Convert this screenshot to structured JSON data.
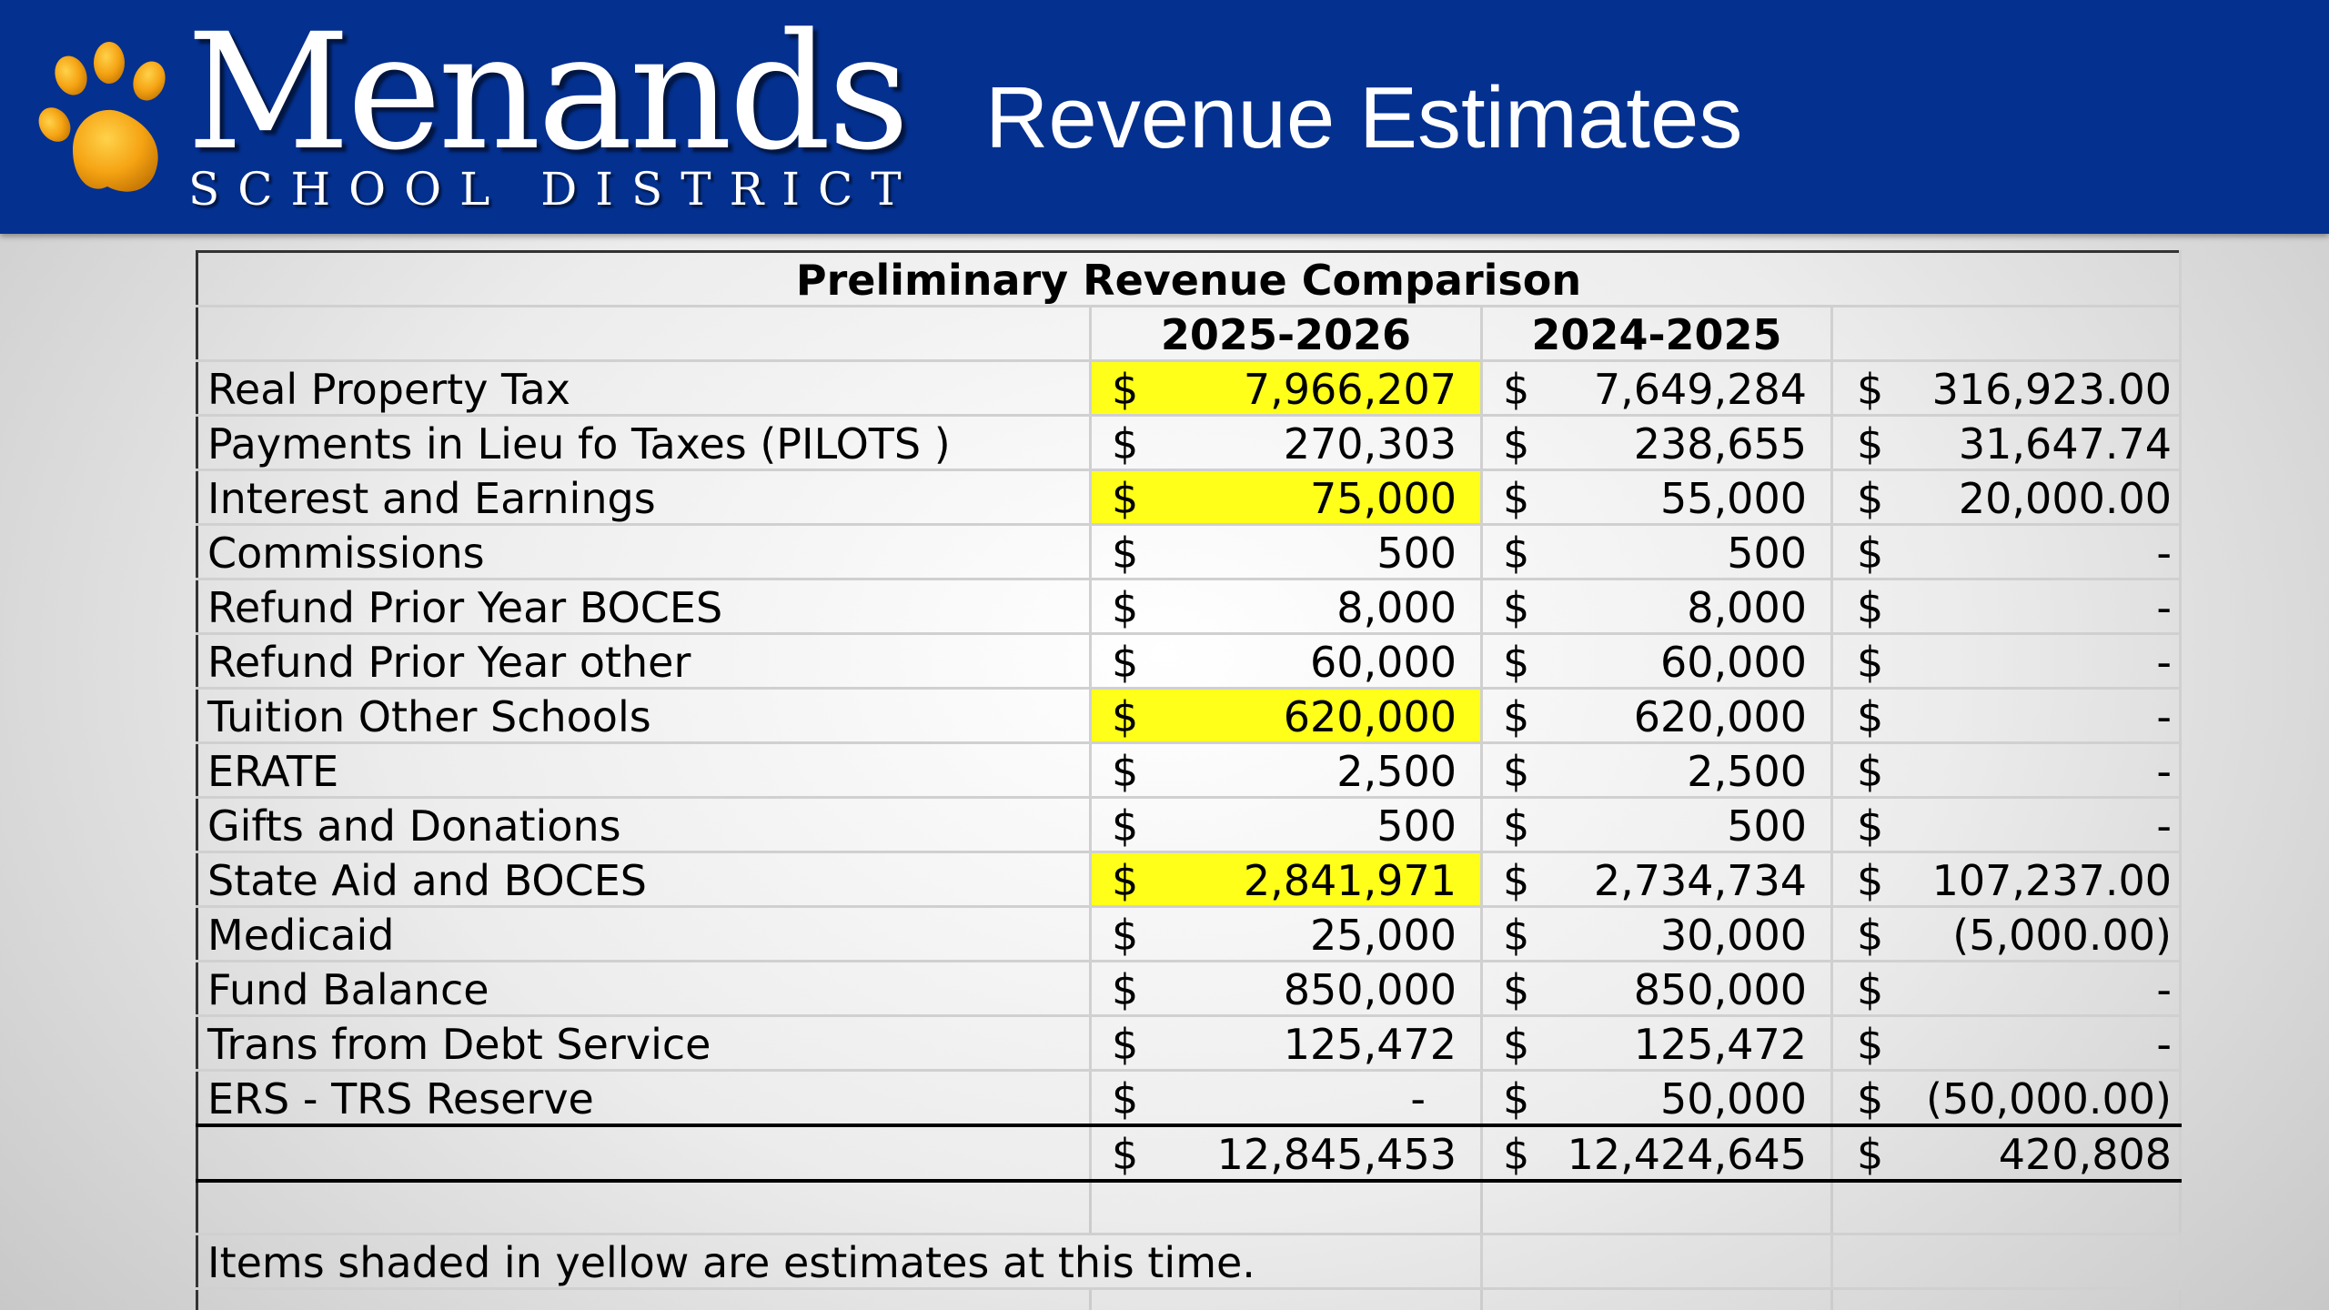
{
  "header": {
    "logo_name": "Menands",
    "logo_sub": "SCHOOL DISTRICT",
    "slide_title": "Revenue Estimates",
    "colors": {
      "banner": "#04308f",
      "paw": "#f5a313",
      "highlight": "#ffff1a"
    }
  },
  "table": {
    "title": "Preliminary Revenue Comparison",
    "columns": [
      "",
      "2025-2026",
      "2024-2025",
      ""
    ],
    "currency": "$",
    "rows": [
      {
        "label": "Real Property Tax",
        "current": "7,966,207",
        "prior": "7,649,284",
        "change": "316,923.00",
        "estimate": true
      },
      {
        "label": "Payments in Lieu fo Taxes (PILOTS )",
        "current": "270,303",
        "prior": "238,655",
        "change": "31,647.74",
        "estimate": false
      },
      {
        "label": "Interest and Earnings",
        "current": "75,000",
        "prior": "55,000",
        "change": "20,000.00",
        "estimate": true
      },
      {
        "label": "Commissions",
        "current": "500",
        "prior": "500",
        "change": "-",
        "estimate": false
      },
      {
        "label": "Refund Prior Year BOCES",
        "current": "8,000",
        "prior": "8,000",
        "change": "-",
        "estimate": false
      },
      {
        "label": "Refund Prior Year other",
        "current": "60,000",
        "prior": "60,000",
        "change": "-",
        "estimate": false
      },
      {
        "label": "Tuition Other Schools",
        "current": "620,000",
        "prior": "620,000",
        "change": "-",
        "estimate": true
      },
      {
        "label": "ERATE",
        "current": "2,500",
        "prior": "2,500",
        "change": "-",
        "estimate": false
      },
      {
        "label": "Gifts and Donations",
        "current": "500",
        "prior": "500",
        "change": "-",
        "estimate": false
      },
      {
        "label": "State Aid and BOCES",
        "current": "2,841,971",
        "prior": "2,734,734",
        "change": "107,237.00",
        "estimate": true
      },
      {
        "label": "Medicaid",
        "current": "25,000",
        "prior": "30,000",
        "change": "(5,000.00)",
        "estimate": false
      },
      {
        "label": "Fund Balance",
        "current": "850,000",
        "prior": "850,000",
        "change": "-",
        "estimate": false
      },
      {
        "label": "Trans from Debt Service",
        "current": "125,472",
        "prior": "125,472",
        "change": "-",
        "estimate": false
      },
      {
        "label": "ERS - TRS Reserve",
        "current": "-",
        "prior": "50,000",
        "change": "(50,000.00)",
        "estimate": false
      }
    ],
    "total": {
      "current": "12,845,453",
      "prior": "12,424,645",
      "change": "420,808"
    },
    "note": "Items shaded in yellow are estimates at this time."
  }
}
